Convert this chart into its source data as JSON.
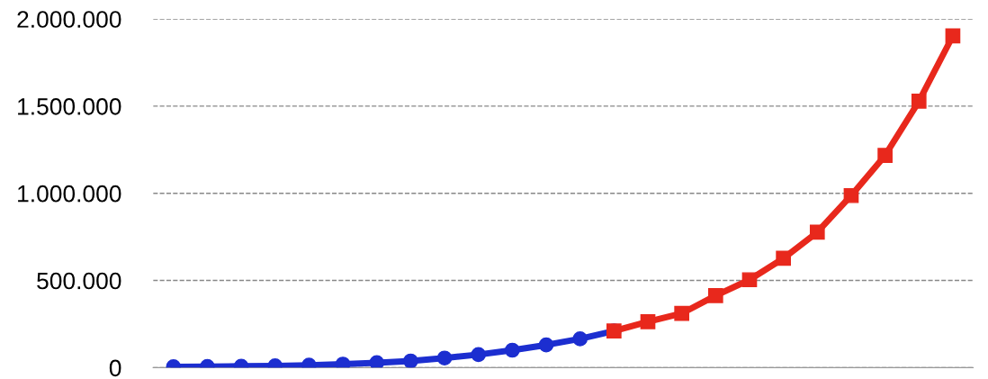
{
  "chart_data": {
    "type": "line",
    "categories": [
      null,
      null,
      null,
      null,
      null,
      null,
      null,
      null,
      null,
      null,
      null,
      null,
      null,
      null,
      null,
      null,
      null,
      null,
      null,
      null,
      null,
      null,
      null,
      null
    ],
    "series": [
      {
        "color": "#1c2ed0",
        "marker": "circle",
        "values": [
          5000,
          6000,
          8000,
          10000,
          14000,
          20000,
          28000,
          38000,
          55000,
          75000,
          100000,
          130000,
          165000,
          210000,
          null,
          null,
          null,
          null,
          null,
          null,
          null,
          null,
          null,
          null
        ]
      },
      {
        "color": "#e8281c",
        "marker": "square",
        "values": [
          null,
          null,
          null,
          null,
          null,
          null,
          null,
          null,
          null,
          null,
          null,
          null,
          null,
          210000,
          263000,
          311000,
          413000,
          504000,
          627000,
          777000,
          987000,
          1217000,
          1528000,
          1903000
        ]
      }
    ],
    "ylim": [
      0,
      2000000
    ],
    "yticks": [
      {
        "value": 0,
        "label": "0"
      },
      {
        "value": 500000,
        "label": "500.000"
      },
      {
        "value": 1000000,
        "label": "1.000.000"
      },
      {
        "value": 1500000,
        "label": "1.500.000"
      },
      {
        "value": 2000000,
        "label": "2.000.000"
      }
    ],
    "grid": "y"
  }
}
